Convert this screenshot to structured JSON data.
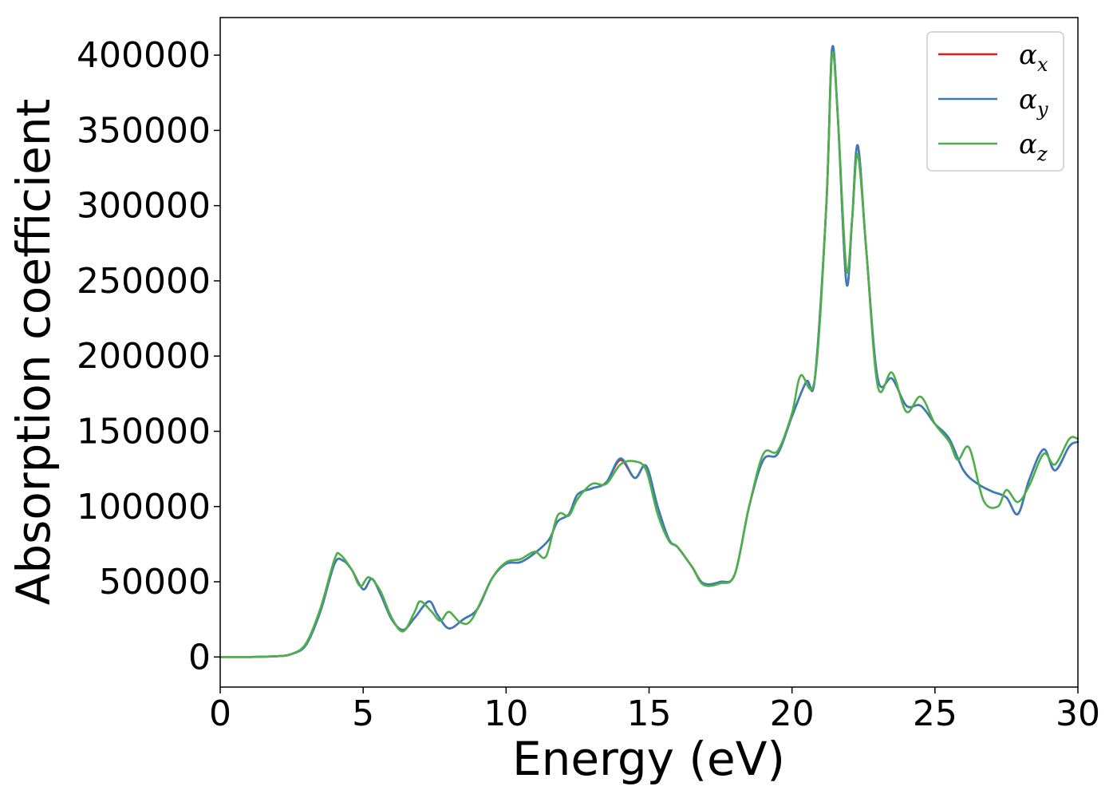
{
  "chart_data": {
    "type": "line",
    "title": "",
    "xlabel": "Energy (eV)",
    "ylabel": "Absorption coefficient",
    "xlim": [
      0,
      30
    ],
    "ylim": [
      -20000,
      425000
    ],
    "xticks": [
      0,
      5,
      10,
      15,
      20,
      25,
      30
    ],
    "xtick_labels": [
      "0",
      "5",
      "10",
      "15",
      "20",
      "25",
      "30"
    ],
    "yticks": [
      0,
      50000,
      100000,
      150000,
      200000,
      250000,
      300000,
      350000,
      400000
    ],
    "ytick_labels": [
      "0",
      "50000",
      "100000",
      "150000",
      "200000",
      "250000",
      "300000",
      "350000",
      "400000"
    ],
    "grid": false,
    "legend_position": "top-right",
    "series": [
      {
        "name": "α",
        "subscript": "x",
        "color": "#e41a1c",
        "points": [
          [
            0,
            0
          ],
          [
            1,
            0
          ],
          [
            2,
            500
          ],
          [
            2.5,
            2000
          ],
          [
            3,
            8000
          ],
          [
            3.5,
            30000
          ],
          [
            4,
            62000
          ],
          [
            4.3,
            64000
          ],
          [
            4.6,
            58000
          ],
          [
            5,
            45000
          ],
          [
            5.3,
            52000
          ],
          [
            5.6,
            42000
          ],
          [
            6,
            25000
          ],
          [
            6.4,
            18000
          ],
          [
            6.8,
            26000
          ],
          [
            7.3,
            37000
          ],
          [
            7.6,
            28000
          ],
          [
            8,
            19000
          ],
          [
            8.5,
            25000
          ],
          [
            9,
            32000
          ],
          [
            9.5,
            52000
          ],
          [
            10,
            62000
          ],
          [
            10.5,
            63000
          ],
          [
            11,
            69000
          ],
          [
            11.5,
            78000
          ],
          [
            11.8,
            90000
          ],
          [
            12.2,
            95000
          ],
          [
            12.5,
            108000
          ],
          [
            13,
            112000
          ],
          [
            13.5,
            116000
          ],
          [
            14,
            131000
          ],
          [
            14.5,
            119000
          ],
          [
            14.9,
            127000
          ],
          [
            15.3,
            100000
          ],
          [
            15.7,
            78000
          ],
          [
            16,
            73000
          ],
          [
            16.5,
            60000
          ],
          [
            16.9,
            49000
          ],
          [
            17.5,
            50000
          ],
          [
            18,
            55000
          ],
          [
            18.5,
            100000
          ],
          [
            19,
            131000
          ],
          [
            19.5,
            135000
          ],
          [
            20,
            160000
          ],
          [
            20.5,
            183000
          ],
          [
            20.8,
            185000
          ],
          [
            21.2,
            300000
          ],
          [
            21.4,
            404000
          ],
          [
            21.6,
            360000
          ],
          [
            21.9,
            249000
          ],
          [
            22.1,
            290000
          ],
          [
            22.3,
            340000
          ],
          [
            22.6,
            270000
          ],
          [
            23,
            185000
          ],
          [
            23.5,
            185000
          ],
          [
            24,
            167000
          ],
          [
            24.5,
            167000
          ],
          [
            25,
            155000
          ],
          [
            25.5,
            145000
          ],
          [
            26,
            124000
          ],
          [
            26.5,
            115000
          ],
          [
            27,
            110000
          ],
          [
            27.5,
            106000
          ],
          [
            27.9,
            95000
          ],
          [
            28.3,
            118000
          ],
          [
            28.8,
            138000
          ],
          [
            29.2,
            124000
          ],
          [
            29.7,
            140000
          ],
          [
            30,
            143000
          ]
        ]
      },
      {
        "name": "α",
        "subscript": "y",
        "color": "#377eb8",
        "points": [
          [
            0,
            0
          ],
          [
            1,
            0
          ],
          [
            2,
            500
          ],
          [
            2.5,
            2000
          ],
          [
            3,
            8000
          ],
          [
            3.5,
            30000
          ],
          [
            4,
            62000
          ],
          [
            4.3,
            64000
          ],
          [
            4.6,
            58000
          ],
          [
            5,
            45000
          ],
          [
            5.3,
            52000
          ],
          [
            5.6,
            42000
          ],
          [
            6,
            25000
          ],
          [
            6.4,
            18000
          ],
          [
            6.8,
            26000
          ],
          [
            7.3,
            37000
          ],
          [
            7.6,
            28000
          ],
          [
            8,
            19000
          ],
          [
            8.5,
            25000
          ],
          [
            9,
            32000
          ],
          [
            9.5,
            52000
          ],
          [
            10,
            62000
          ],
          [
            10.5,
            63000
          ],
          [
            11,
            69000
          ],
          [
            11.5,
            78000
          ],
          [
            11.8,
            90000
          ],
          [
            12.2,
            95000
          ],
          [
            12.5,
            108000
          ],
          [
            13,
            112000
          ],
          [
            13.5,
            116000
          ],
          [
            14,
            132000
          ],
          [
            14.5,
            119000
          ],
          [
            14.9,
            127000
          ],
          [
            15.3,
            100000
          ],
          [
            15.7,
            78000
          ],
          [
            16,
            73000
          ],
          [
            16.5,
            60000
          ],
          [
            16.9,
            49000
          ],
          [
            17.5,
            50000
          ],
          [
            18,
            55000
          ],
          [
            18.5,
            100000
          ],
          [
            19,
            131000
          ],
          [
            19.5,
            135000
          ],
          [
            20,
            160000
          ],
          [
            20.5,
            183000
          ],
          [
            20.8,
            185000
          ],
          [
            21.2,
            300000
          ],
          [
            21.4,
            404000
          ],
          [
            21.6,
            360000
          ],
          [
            21.9,
            249000
          ],
          [
            22.1,
            290000
          ],
          [
            22.3,
            340000
          ],
          [
            22.6,
            270000
          ],
          [
            23,
            185000
          ],
          [
            23.5,
            185000
          ],
          [
            24,
            167000
          ],
          [
            24.5,
            167000
          ],
          [
            25,
            155000
          ],
          [
            25.5,
            145000
          ],
          [
            26,
            124000
          ],
          [
            26.5,
            115000
          ],
          [
            27,
            110000
          ],
          [
            27.5,
            106000
          ],
          [
            27.9,
            95000
          ],
          [
            28.3,
            118000
          ],
          [
            28.8,
            138000
          ],
          [
            29.2,
            124000
          ],
          [
            29.7,
            140000
          ],
          [
            30,
            143000
          ]
        ]
      },
      {
        "name": "α",
        "subscript": "z",
        "color": "#4daf4a",
        "points": [
          [
            0,
            0
          ],
          [
            1,
            0
          ],
          [
            2,
            500
          ],
          [
            2.5,
            2000
          ],
          [
            3,
            9000
          ],
          [
            3.5,
            32000
          ],
          [
            4,
            65000
          ],
          [
            4.2,
            68000
          ],
          [
            4.6,
            58000
          ],
          [
            4.9,
            47000
          ],
          [
            5.2,
            53000
          ],
          [
            5.6,
            44000
          ],
          [
            6,
            26000
          ],
          [
            6.4,
            17000
          ],
          [
            6.8,
            30000
          ],
          [
            7,
            37000
          ],
          [
            7.4,
            30000
          ],
          [
            7.7,
            24000
          ],
          [
            8,
            30000
          ],
          [
            8.4,
            23000
          ],
          [
            8.8,
            25000
          ],
          [
            9.5,
            52000
          ],
          [
            10,
            63000
          ],
          [
            10.5,
            65000
          ],
          [
            11,
            70000
          ],
          [
            11.4,
            67000
          ],
          [
            11.8,
            94000
          ],
          [
            12.2,
            94000
          ],
          [
            12.5,
            105000
          ],
          [
            13,
            115000
          ],
          [
            13.5,
            115000
          ],
          [
            14,
            128000
          ],
          [
            14.5,
            130000
          ],
          [
            14.9,
            124000
          ],
          [
            15.3,
            95000
          ],
          [
            15.7,
            77000
          ],
          [
            16,
            73000
          ],
          [
            16.5,
            60000
          ],
          [
            16.9,
            48000
          ],
          [
            17.5,
            49000
          ],
          [
            18,
            55000
          ],
          [
            18.5,
            100000
          ],
          [
            19,
            135000
          ],
          [
            19.5,
            137000
          ],
          [
            20,
            162000
          ],
          [
            20.3,
            187000
          ],
          [
            20.8,
            185000
          ],
          [
            21.2,
            300000
          ],
          [
            21.4,
            400000
          ],
          [
            21.6,
            360000
          ],
          [
            21.9,
            258000
          ],
          [
            22.1,
            290000
          ],
          [
            22.3,
            334000
          ],
          [
            22.6,
            270000
          ],
          [
            23,
            180000
          ],
          [
            23.5,
            189000
          ],
          [
            24,
            163000
          ],
          [
            24.5,
            173000
          ],
          [
            25,
            155000
          ],
          [
            25.5,
            143000
          ],
          [
            25.8,
            131000
          ],
          [
            26.2,
            139000
          ],
          [
            26.7,
            104000
          ],
          [
            27.2,
            100000
          ],
          [
            27.5,
            111000
          ],
          [
            27.9,
            103000
          ],
          [
            28.3,
            114000
          ],
          [
            28.8,
            135000
          ],
          [
            29.2,
            128000
          ],
          [
            29.7,
            145000
          ],
          [
            30,
            145000
          ]
        ]
      }
    ]
  }
}
